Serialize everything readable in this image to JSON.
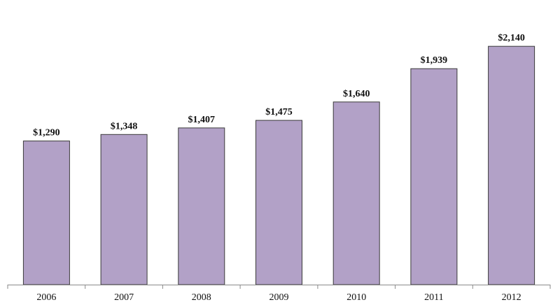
{
  "chart_data": {
    "type": "bar",
    "title": "",
    "xlabel": "",
    "ylabel": "",
    "categories": [
      "2006",
      "2007",
      "2008",
      "2009",
      "2010",
      "2011",
      "2012"
    ],
    "values": [
      1290,
      1348,
      1407,
      1475,
      1640,
      1939,
      2140
    ],
    "value_labels": [
      "$1,290",
      "$1,348",
      "$1,407",
      "$1,475",
      "$1,640",
      "$1,939",
      "$2,140"
    ],
    "ylim": [
      0,
      2380
    ],
    "grid": false,
    "legend": "none",
    "colors": {
      "bar_fill": "#b2a1c7",
      "bar_stroke": "#3a3a3a",
      "axis": "#8a8a8a",
      "text": "#111111"
    }
  }
}
